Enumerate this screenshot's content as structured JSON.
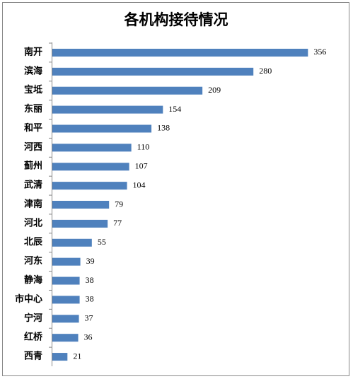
{
  "chart_data": {
    "type": "bar",
    "orientation": "horizontal",
    "title": "各机构接待情况",
    "categories": [
      "南开",
      "滨海",
      "宝坻",
      "东丽",
      "和平",
      "河西",
      "蓟州",
      "武清",
      "津南",
      "河北",
      "北辰",
      "河东",
      "静海",
      "市中心",
      "宁河",
      "红桥",
      "西青"
    ],
    "values": [
      356,
      280,
      209,
      154,
      138,
      110,
      107,
      104,
      79,
      77,
      55,
      39,
      38,
      38,
      37,
      36,
      21
    ],
    "color": "#4f81bd"
  }
}
